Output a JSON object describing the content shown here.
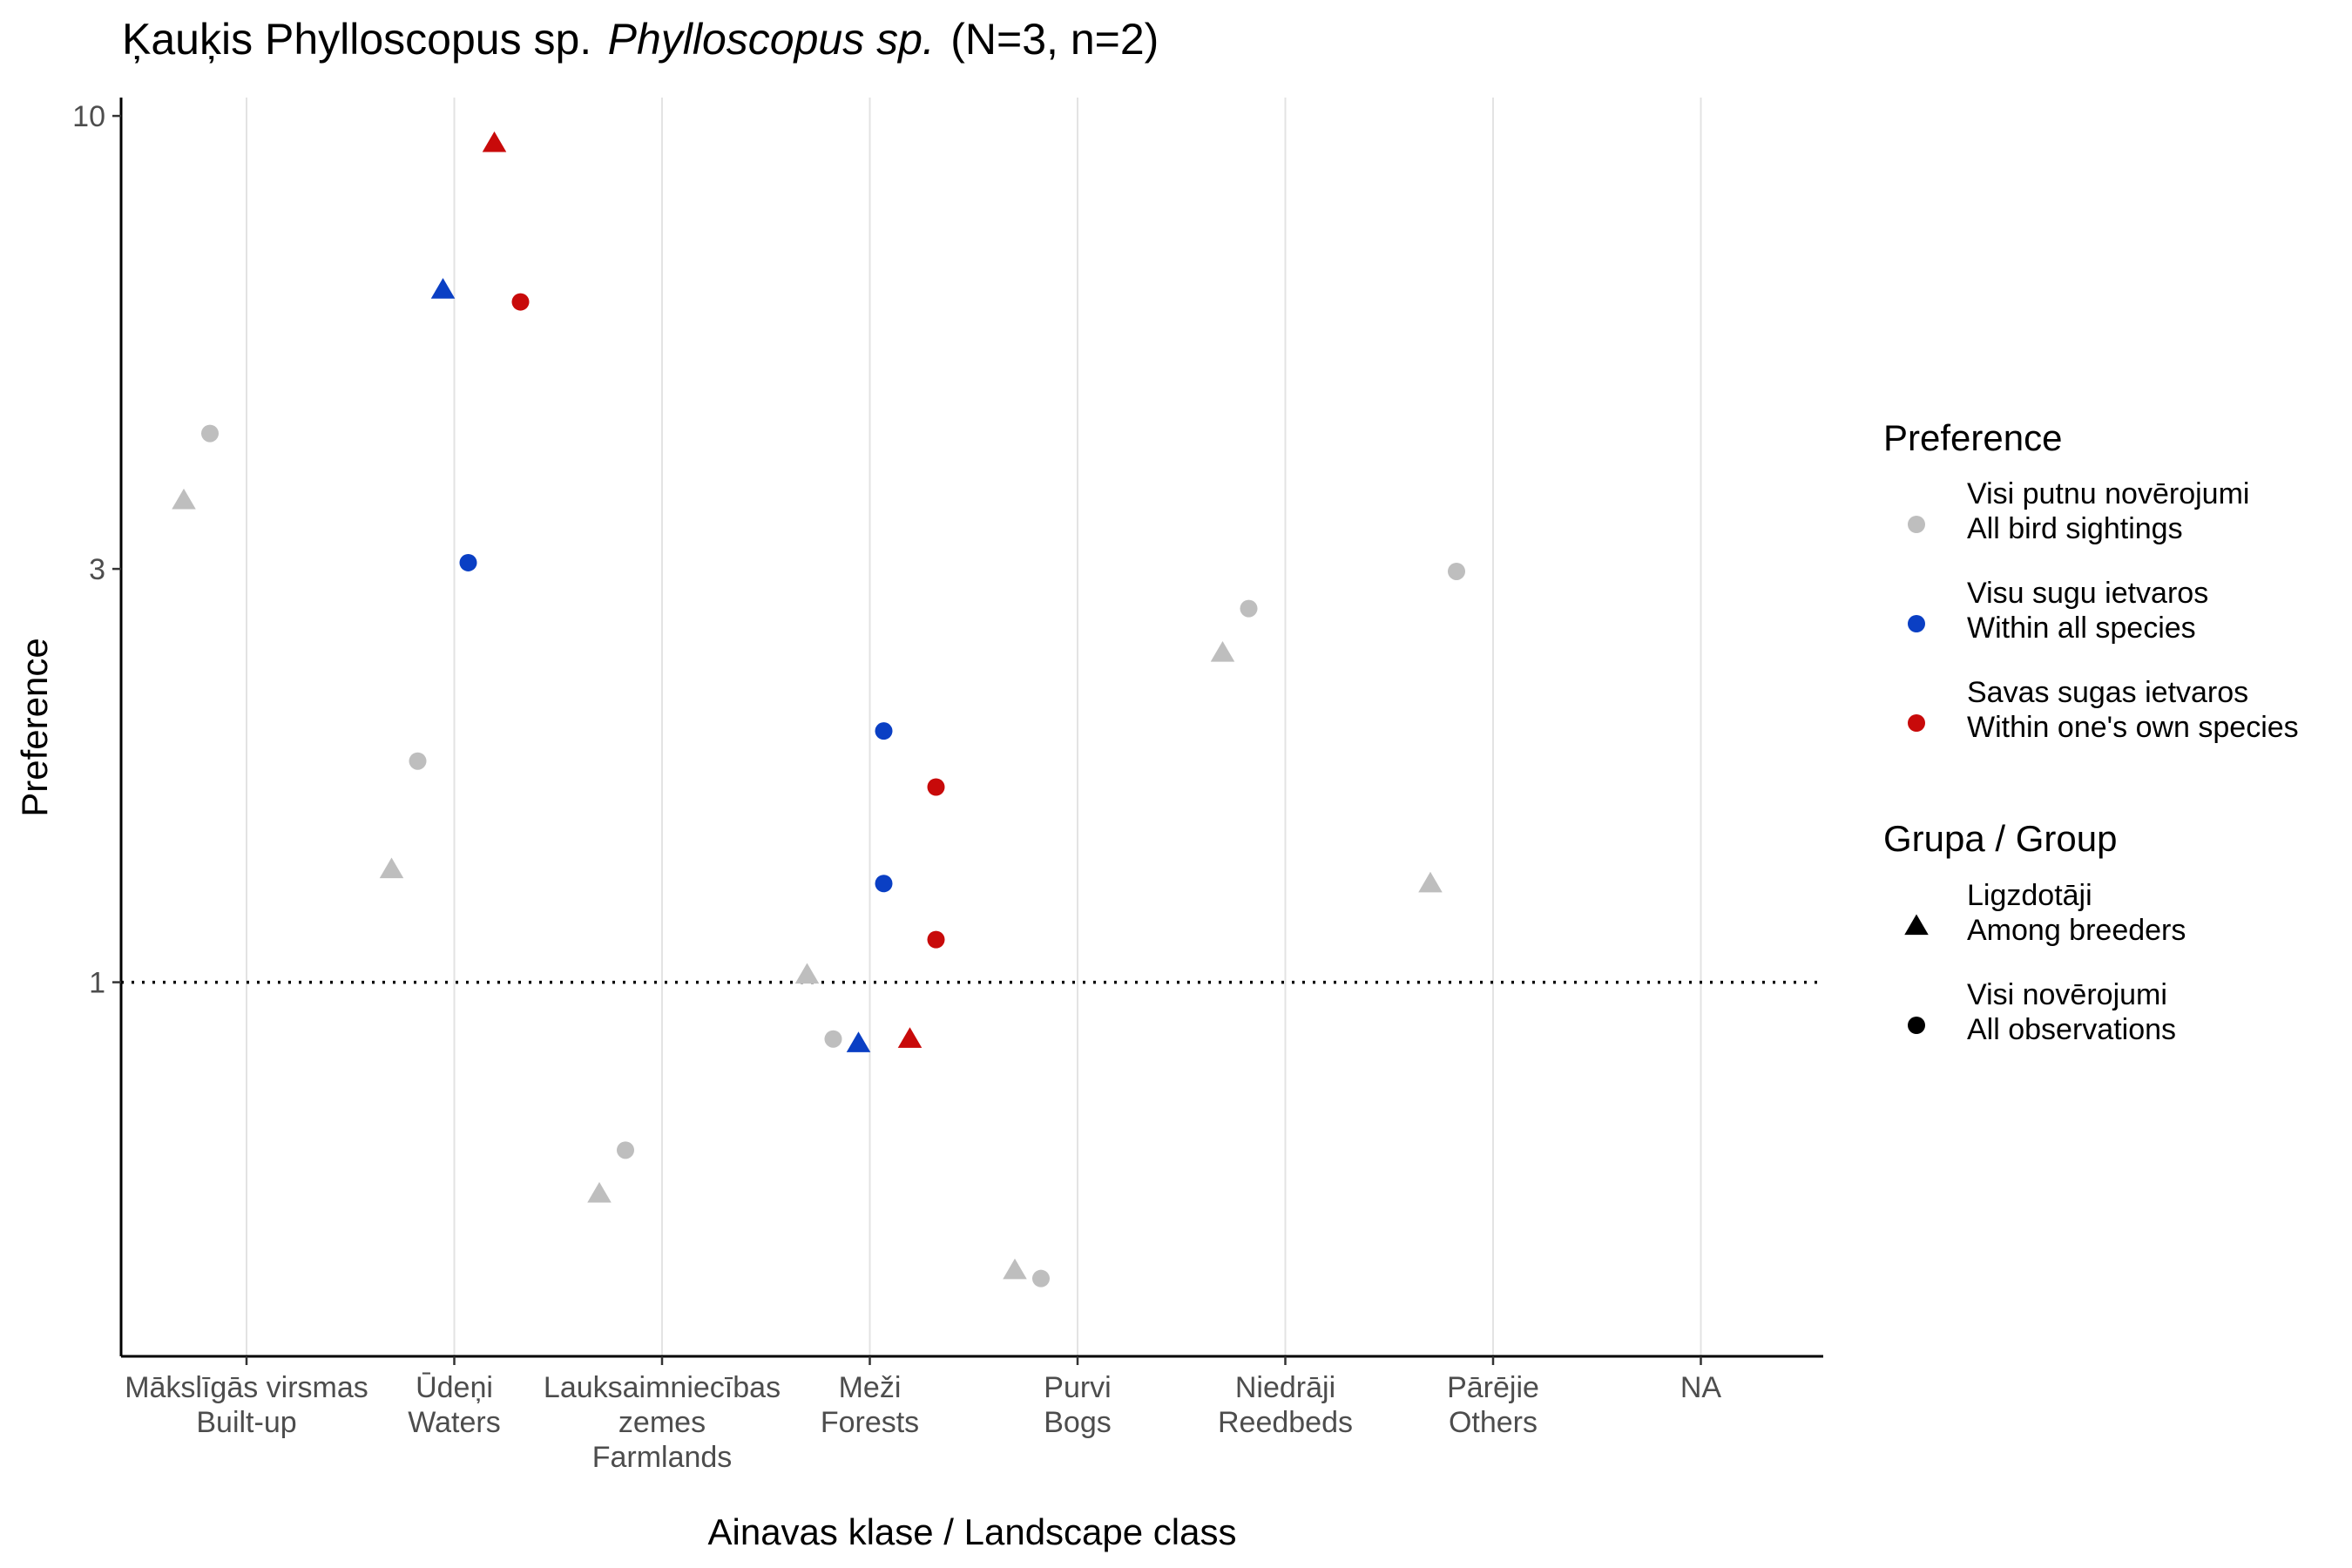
{
  "chart_data": {
    "type": "scatter",
    "title": {
      "prefix": "Ķauķis Phylloscopus sp.",
      "italic": "Phylloscopus sp.",
      "suffix": "(N=3, n=2)"
    },
    "xlabel": "Ainavas klase / Landscape class",
    "ylabel": "Preference",
    "y_scale": "log",
    "ylim": [
      0.37,
      10.5
    ],
    "y_ticks": [
      {
        "value": 1,
        "label": "1"
      },
      {
        "value": 3,
        "label": "3"
      },
      {
        "value": 10,
        "label": "10"
      }
    ],
    "reference_line": {
      "y": 1,
      "style": "dotted"
    },
    "grid": "vertical",
    "categories": [
      {
        "line1": "Mākslīgās virsmas",
        "line2": "Built-up",
        "line3": ""
      },
      {
        "line1": "Ūdeņi",
        "line2": "Waters",
        "line3": ""
      },
      {
        "line1": "Lauksaimniecības",
        "line2": "zemes",
        "line3": "Farmlands"
      },
      {
        "line1": "Meži",
        "line2": "Forests",
        "line3": ""
      },
      {
        "line1": "Purvi",
        "line2": "Bogs",
        "line3": ""
      },
      {
        "line1": "Niedrāji",
        "line2": "Reedbeds",
        "line3": ""
      },
      {
        "line1": "Pārējie",
        "line2": "Others",
        "line3": ""
      },
      {
        "line1": "NA",
        "line2": "",
        "line3": ""
      }
    ],
    "colors": {
      "all_birds": "#bebebe",
      "all_species": "#0a3fc4",
      "own_species": "#c80a0a"
    },
    "points": [
      {
        "category": 0,
        "dodge": 1,
        "shape": "circle",
        "color": "all_birds",
        "y": 4.3
      },
      {
        "category": 0,
        "dodge": 0,
        "shape": "triangle",
        "color": "all_birds",
        "y": 3.6
      },
      {
        "category": 1,
        "dodge": 1,
        "shape": "circle",
        "color": "all_birds",
        "y": 1.8
      },
      {
        "category": 1,
        "dodge": 0,
        "shape": "triangle",
        "color": "all_birds",
        "y": 1.35
      },
      {
        "category": 1,
        "dodge": 2,
        "shape": "triangle",
        "color": "all_species",
        "y": 6.3
      },
      {
        "category": 1,
        "dodge": 3,
        "shape": "circle",
        "color": "all_species",
        "y": 3.05
      },
      {
        "category": 1,
        "dodge": 4,
        "shape": "triangle",
        "color": "own_species",
        "y": 9.3
      },
      {
        "category": 1,
        "dodge": 5,
        "shape": "circle",
        "color": "own_species",
        "y": 6.1
      },
      {
        "category": 2,
        "dodge": 1,
        "shape": "circle",
        "color": "all_birds",
        "y": 0.64
      },
      {
        "category": 2,
        "dodge": 0,
        "shape": "triangle",
        "color": "all_birds",
        "y": 0.57
      },
      {
        "category": 3,
        "dodge": 0,
        "shape": "triangle",
        "color": "all_birds",
        "y": 1.02
      },
      {
        "category": 3,
        "dodge": 1,
        "shape": "circle",
        "color": "all_birds",
        "y": 0.86
      },
      {
        "category": 3,
        "dodge": 2,
        "shape": "triangle",
        "color": "all_species",
        "y": 0.85
      },
      {
        "category": 3,
        "dodge": 3,
        "shape": "circle",
        "color": "all_species",
        "y": 1.95
      },
      {
        "category": 3,
        "dodge": 3,
        "shape": "circle",
        "color": "all_species",
        "y": 1.3
      },
      {
        "category": 3,
        "dodge": 4,
        "shape": "triangle",
        "color": "own_species",
        "y": 0.86
      },
      {
        "category": 3,
        "dodge": 5,
        "shape": "circle",
        "color": "own_species",
        "y": 1.68
      },
      {
        "category": 3,
        "dodge": 5,
        "shape": "circle",
        "color": "own_species",
        "y": 1.12
      },
      {
        "category": 4,
        "dodge": 0,
        "shape": "triangle",
        "color": "all_birds",
        "y": 0.465
      },
      {
        "category": 4,
        "dodge": 1,
        "shape": "circle",
        "color": "all_birds",
        "y": 0.455
      },
      {
        "category": 5,
        "dodge": 1,
        "shape": "circle",
        "color": "all_birds",
        "y": 2.7
      },
      {
        "category": 5,
        "dodge": 0,
        "shape": "triangle",
        "color": "all_birds",
        "y": 2.4
      },
      {
        "category": 6,
        "dodge": 1,
        "shape": "circle",
        "color": "all_birds",
        "y": 2.98
      },
      {
        "category": 6,
        "dodge": 0,
        "shape": "triangle",
        "color": "all_birds",
        "y": 1.3
      }
    ],
    "legend": {
      "placement": "right",
      "preference": {
        "title": "Preference",
        "items": [
          {
            "color": "all_birds",
            "line1": "Visi putnu novērojumi",
            "line2": "All bird sightings"
          },
          {
            "color": "all_species",
            "line1": "Visu sugu ietvaros",
            "line2": "Within all species"
          },
          {
            "color": "own_species",
            "line1": "Savas sugas ietvaros",
            "line2": "Within one's own species"
          }
        ]
      },
      "group": {
        "title": "Grupa / Group",
        "items": [
          {
            "shape": "triangle",
            "line1": "Ligzdotāji",
            "line2": "Among breeders"
          },
          {
            "shape": "circle",
            "line1": "Visi novērojumi",
            "line2": "All observations"
          }
        ]
      }
    }
  }
}
